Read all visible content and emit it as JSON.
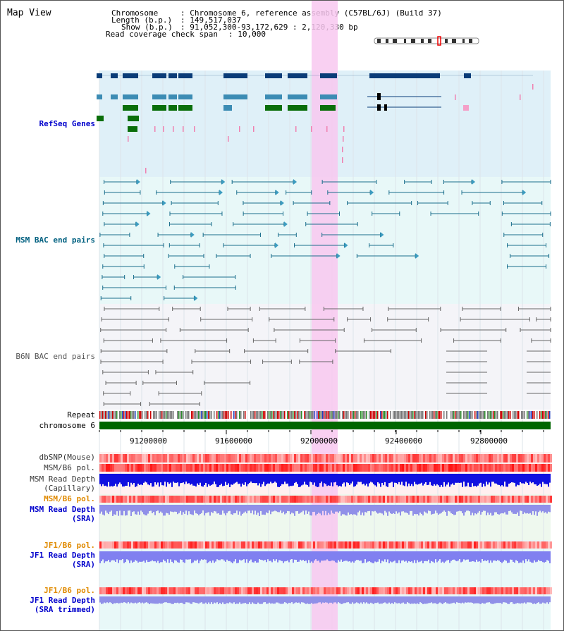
{
  "title": "Map View",
  "header": {
    "chromosome_key": "Chromosome",
    "chromosome_val": ": Chromosome 6, reference assembly (C57BL/6J) (Build 37)",
    "length_key": "Length (b.p.)",
    "length_val": ": 149,517,037",
    "show_key": "Show (b.p.)",
    "show_val": ": 91,052,300-93,172,629 : 2,120,330 bp",
    "coverage_key": "Read coverage check span",
    "coverage_val": ": 10,000"
  },
  "tracks": {
    "refseq": "RefSeq Genes",
    "msm_bac": "MSM BAC end pairs",
    "b6n_bac": "B6N BAC end pairs",
    "repeat": "Repeat",
    "chromosome": "chromosome 6",
    "dbsnp": "dbSNP(Mouse)",
    "msm_b6_pol": "MSM/B6 pol.",
    "msm_depth_cap_1": "MSM Read Depth",
    "msm_depth_cap_2": "(Capillary)",
    "msm_b6_pol_sra": "MSM/B6 pol.",
    "msm_depth_sra_1": "MSM Read Depth",
    "msm_depth_sra_2": "(SRA)",
    "jf1_b6_pol": "JF1/B6 pol.",
    "jf1_depth_sra_1": "JF1 Read Depth",
    "jf1_depth_sra_2": "(SRA)",
    "jf1_b6_pol_trim": "JF1/B6 pol.",
    "jf1_depth_trim_1": "JF1 Read Depth",
    "jf1_depth_trim_2": "(SRA trimmed)"
  },
  "axis": {
    "ticks": [
      "91200000",
      "91600000",
      "92000000",
      "92400000",
      "92800000"
    ]
  },
  "colors": {
    "refseq_bg": "#dff0f8",
    "refseq_label": "#0000cc",
    "msm_bg": "#e8f8f8",
    "msm_label": "#006080",
    "b6n_bg": "#f4f4f8",
    "b6n_label": "#555555",
    "highlight": "#f8c8f0",
    "chromosome_bar": "#006600",
    "pol_label_orange": "#e08a00",
    "depth_label_blue": "#0000cc"
  }
}
